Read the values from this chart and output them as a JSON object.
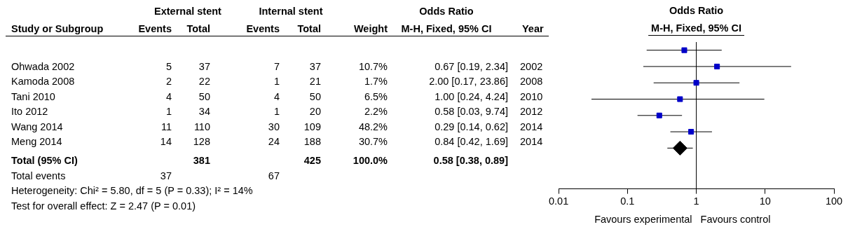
{
  "chart_data": [
    {
      "type": "other",
      "annotations": [
        "External stent",
        "Internal stent",
        "Odds Ratio",
        "Study or Subgroup",
        "Events",
        "Total",
        "Events",
        "Total",
        "Weight",
        "M-H, Fixed, 95% CI",
        "Year",
        "Ohwada 2002",
        "5",
        "37",
        "7",
        "37",
        "10.7%",
        "0.67 [0.19, 2.34]",
        "2002",
        "Kamoda 2008",
        "2",
        "22",
        "1",
        "21",
        "1.7%",
        "2.00 [0.17, 23.86]",
        "2008",
        "Tani 2010",
        "4",
        "50",
        "4",
        "50",
        "6.5%",
        "1.00 [0.24, 4.24]",
        "2010",
        "Ito 2012",
        "1",
        "34",
        "1",
        "20",
        "2.2%",
        "0.58 [0.03, 9.74]",
        "2012",
        "Wang 2014",
        "11",
        "110",
        "30",
        "109",
        "48.2%",
        "0.29 [0.14, 0.62]",
        "2014",
        "Meng 2014",
        "14",
        "128",
        "24",
        "188",
        "30.7%",
        "0.84 [0.42, 1.69]",
        "2014",
        "Total (95% CI)",
        "381",
        "425",
        "100.0%",
        "0.58 [0.38, 0.89]",
        "Total events",
        "37",
        "67",
        "Heterogeneity: Chi² = 5.80, df = 5 (P = 0.33); I² = 14%",
        "Test for overall effect: Z = 2.47 (P = 0.01)"
      ]
    },
    {
      "type": "scatter",
      "title": "Odds Ratio",
      "subtitle": "M-H, Fixed, 95% CI",
      "orientation": "horizontal",
      "categories": [
        null,
        null,
        null,
        null,
        null,
        null,
        null,
        null,
        null
      ],
      "log": "x",
      "xlim": [
        0.01,
        100
      ],
      "xticks": [
        0.01,
        0.1,
        1,
        10,
        100
      ],
      "grid": false,
      "legend": false,
      "tick_labels": "x",
      "ref_lines": [
        {
          "axis": "x",
          "value": 1
        }
      ],
      "annotations": [
        "Favours experimental",
        "Favours control"
      ],
      "series": [
        {
          "marker": "square",
          "color": "#0000c8",
          "values": [
            0.67,
            2.0,
            1.0,
            0.58,
            0.29,
            0.84,
            null,
            null,
            null
          ],
          "errors": [
            [
              0.19,
              2.34
            ],
            [
              0.17,
              23.86
            ],
            [
              0.24,
              4.24
            ],
            [
              0.03,
              9.74
            ],
            [
              0.14,
              0.62
            ],
            [
              0.42,
              1.69
            ],
            null,
            null,
            null
          ]
        },
        {
          "marker": "diamond",
          "color": "#000000",
          "values": [
            null,
            null,
            null,
            null,
            null,
            null,
            0.58,
            null,
            null
          ],
          "errors": [
            null,
            null,
            null,
            null,
            null,
            null,
            [
              0.38,
              0.89
            ],
            null,
            null
          ]
        }
      ]
    }
  ]
}
